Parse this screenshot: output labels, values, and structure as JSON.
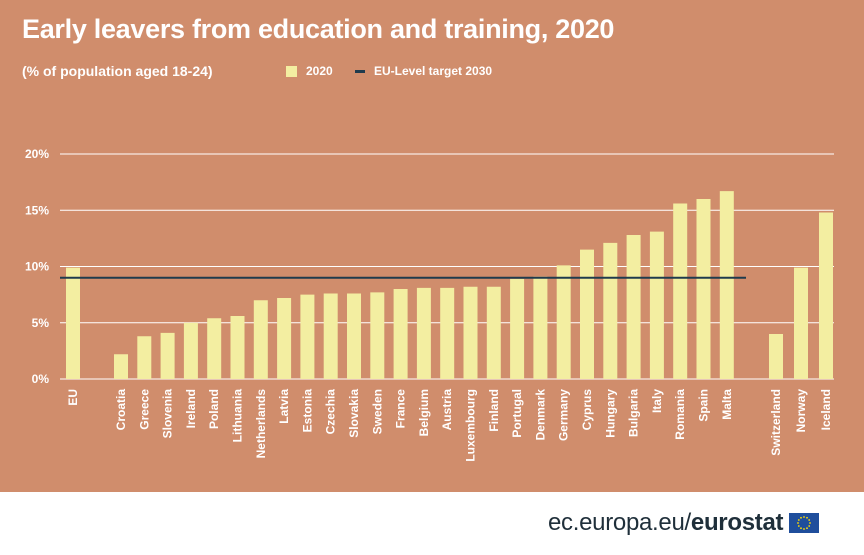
{
  "title": "Early leavers from education and training, 2020",
  "subtitle": "(% of population aged 18-24)",
  "legend": {
    "bar_label": "2020",
    "line_label": "EU-Level target 2030"
  },
  "colors": {
    "background": "#d08d6c",
    "bar": "#f3eea1",
    "target_line": "#1f3b4d",
    "gridline": "#ffffff",
    "text": "#ffffff"
  },
  "footer": {
    "url": "ec.europa.eu/",
    "brand": "eurostat"
  },
  "chart_data": {
    "type": "bar",
    "categories": [
      "EU",
      "Croatia",
      "Greece",
      "Slovenia",
      "Ireland",
      "Poland",
      "Lithuania",
      "Netherlands",
      "Latvia",
      "Estonia",
      "Czechia",
      "Slovakia",
      "Sweden",
      "France",
      "Belgium",
      "Austria",
      "Luxembourg",
      "Finland",
      "Portugal",
      "Denmark",
      "Germany",
      "Cyprus",
      "Hungary",
      "Bulgaria",
      "Italy",
      "Romania",
      "Spain",
      "Malta",
      "Switzerland",
      "Norway",
      "Iceland"
    ],
    "series": [
      {
        "name": "2020",
        "values": [
          9.9,
          2.2,
          3.8,
          4.1,
          5.0,
          5.4,
          5.6,
          7.0,
          7.2,
          7.5,
          7.6,
          7.6,
          7.7,
          8.0,
          8.1,
          8.1,
          8.2,
          8.2,
          8.9,
          9.1,
          10.1,
          11.5,
          12.1,
          12.8,
          13.1,
          15.6,
          16.0,
          16.7,
          4.0,
          9.9,
          14.8
        ]
      }
    ],
    "target": {
      "name": "EU-Level target 2030",
      "value": 9
    },
    "ylim": [
      0,
      20
    ],
    "yticks": [
      0,
      5,
      10,
      15,
      20
    ],
    "ytick_labels": [
      "0%",
      "5%",
      "10%",
      "15%",
      "20%"
    ],
    "grid": true
  }
}
